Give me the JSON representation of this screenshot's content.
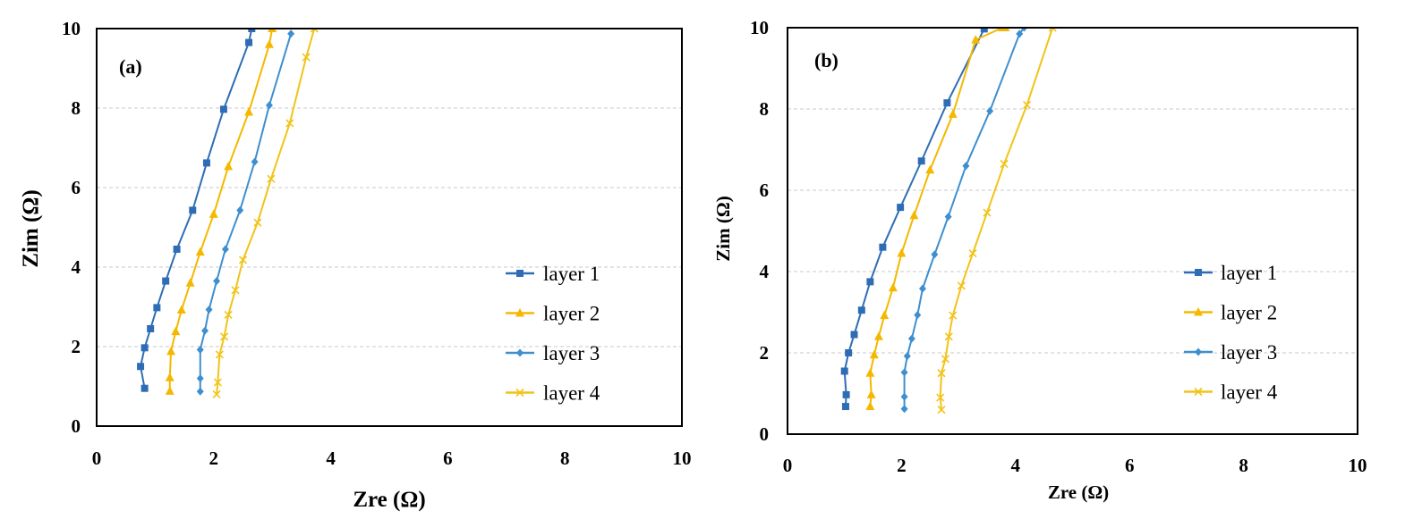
{
  "colors": {
    "layer1": "#2e6db5",
    "layer2": "#f5b800",
    "layer3": "#3d8fd0",
    "layer4": "#f2c318"
  },
  "chart_data": [
    {
      "type": "line",
      "panel_label": "(a)",
      "xlabel": "Zre (Ω)",
      "ylabel": "Zim (Ω)",
      "xlim": [
        0,
        10
      ],
      "ylim": [
        0,
        10
      ],
      "xticks": [
        "0",
        "2",
        "4",
        "6",
        "8",
        "10"
      ],
      "yticks": [
        "0",
        "2",
        "4",
        "6",
        "8",
        "10"
      ],
      "grid": "horizontal-dashed",
      "legend_position": "bottom-right",
      "series": [
        {
          "name": "layer 1",
          "marker": "square",
          "color_key": "layer1",
          "x": [
            0.82,
            0.75,
            0.82,
            0.92,
            1.03,
            1.18,
            1.37,
            1.64,
            1.88,
            2.17,
            2.6,
            2.65
          ],
          "y": [
            0.95,
            1.5,
            1.97,
            2.45,
            2.98,
            3.65,
            4.45,
            5.43,
            6.62,
            7.97,
            9.65,
            10.0
          ]
        },
        {
          "name": "layer 2",
          "marker": "triangle",
          "color_key": "layer2",
          "x": [
            1.25,
            1.25,
            1.27,
            1.35,
            1.45,
            1.6,
            1.77,
            2.0,
            2.25,
            2.6,
            2.95,
            3.0
          ],
          "y": [
            0.88,
            1.22,
            1.88,
            2.38,
            2.92,
            3.6,
            4.38,
            5.33,
            6.53,
            7.9,
            9.6,
            10.0
          ]
        },
        {
          "name": "layer 3",
          "marker": "diamond",
          "color_key": "layer3",
          "x": [
            1.77,
            1.77,
            1.77,
            1.85,
            1.92,
            2.05,
            2.2,
            2.45,
            2.7,
            2.95,
            3.32
          ],
          "y": [
            0.87,
            1.2,
            1.92,
            2.4,
            2.93,
            3.65,
            4.45,
            5.43,
            6.65,
            8.07,
            9.87
          ]
        },
        {
          "name": "layer 4",
          "marker": "x",
          "color_key": "layer4",
          "x": [
            2.05,
            2.07,
            2.1,
            2.18,
            2.25,
            2.37,
            2.5,
            2.75,
            2.98,
            3.3,
            3.58,
            3.72
          ],
          "y": [
            0.8,
            1.1,
            1.8,
            2.25,
            2.8,
            3.42,
            4.18,
            5.12,
            6.22,
            7.62,
            9.28,
            10.0
          ]
        }
      ]
    },
    {
      "type": "line",
      "panel_label": "(b)",
      "xlabel": "Zre (Ω)",
      "ylabel": "Zim (Ω)",
      "xlim": [
        0,
        10
      ],
      "ylim": [
        0,
        10
      ],
      "xticks": [
        "0",
        "2",
        "4",
        "6",
        "8",
        "10"
      ],
      "yticks": [
        "0",
        "2",
        "4",
        "6",
        "8",
        "10"
      ],
      "grid": "horizontal-dashed",
      "legend_position": "bottom-right",
      "series": [
        {
          "name": "layer 1",
          "marker": "square",
          "color_key": "layer1",
          "x": [
            1.02,
            1.03,
            1.0,
            1.07,
            1.17,
            1.3,
            1.45,
            1.67,
            1.98,
            2.35,
            2.8,
            3.45
          ],
          "y": [
            0.68,
            0.97,
            1.55,
            2.0,
            2.45,
            3.05,
            3.75,
            4.6,
            5.58,
            6.72,
            8.15,
            9.97
          ]
        },
        {
          "name": "layer 2",
          "marker": "triangle",
          "color_key": "layer2",
          "x": [
            1.45,
            1.47,
            1.45,
            1.52,
            1.6,
            1.7,
            1.85,
            2.0,
            2.22,
            2.5,
            2.9,
            3.3,
            3.77,
            3.82
          ],
          "y": [
            0.68,
            0.97,
            1.5,
            1.95,
            2.4,
            2.92,
            3.6,
            4.45,
            5.38,
            6.5,
            7.87,
            9.7,
            10.0,
            10.0
          ]
        },
        {
          "name": "layer 3",
          "marker": "diamond",
          "color_key": "layer3",
          "x": [
            2.05,
            2.05,
            2.05,
            2.1,
            2.18,
            2.28,
            2.37,
            2.58,
            2.82,
            3.13,
            3.55,
            4.07,
            4.15
          ],
          "y": [
            0.62,
            0.92,
            1.52,
            1.92,
            2.35,
            2.93,
            3.58,
            4.42,
            5.35,
            6.6,
            7.95,
            9.85,
            10.0
          ]
        },
        {
          "name": "layer 4",
          "marker": "x",
          "color_key": "layer4",
          "x": [
            2.7,
            2.68,
            2.7,
            2.77,
            2.83,
            2.9,
            3.05,
            3.25,
            3.5,
            3.8,
            4.2,
            4.65
          ],
          "y": [
            0.6,
            0.9,
            1.5,
            1.85,
            2.4,
            2.92,
            3.65,
            4.45,
            5.45,
            6.65,
            8.1,
            10.0
          ]
        }
      ]
    }
  ]
}
